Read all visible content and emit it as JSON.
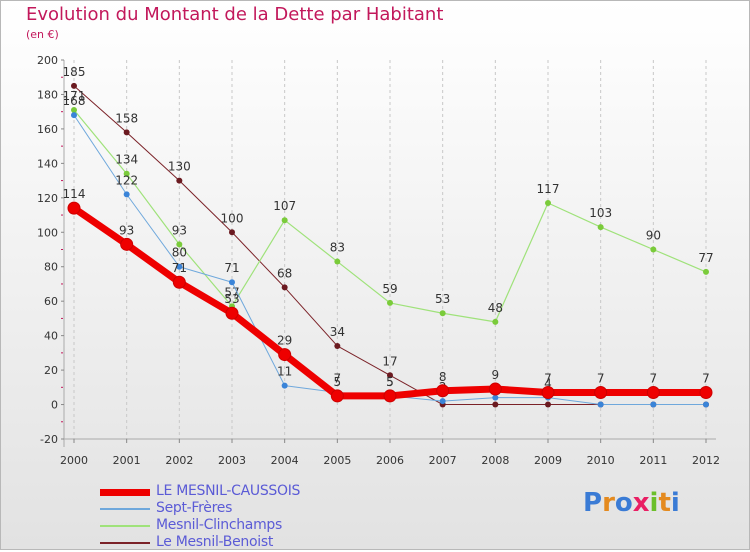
{
  "header": {
    "title": "Evolution du Montant de la Dette par Habitant",
    "subtitle": "(en €)"
  },
  "brand": {
    "text": "Proxiti",
    "colors": [
      "#3a7bd5",
      "#e48a1f",
      "#3a7bd5",
      "#e91e63",
      "#6bbf2a",
      "#e48a1f",
      "#3a7bd5"
    ]
  },
  "chart_data": {
    "type": "line",
    "title": "Evolution du Montant de la Dette par Habitant",
    "ylabel": "(en €)",
    "xlabel": "",
    "ylim": [
      -20,
      200
    ],
    "yticks": [
      -20,
      0,
      20,
      40,
      60,
      80,
      100,
      120,
      140,
      160,
      180,
      200
    ],
    "grid": "vertical dashed at each year",
    "legend_position": "bottom-left",
    "categories": [
      "2000",
      "2001",
      "2002",
      "2003",
      "2004",
      "2005",
      "2006",
      "2007",
      "2008",
      "2009",
      "2010",
      "2011",
      "2012"
    ],
    "series": [
      {
        "name": "Le Mesnil-Benoist",
        "color": "#7b2228",
        "marker": "#6b1a20",
        "width": 1,
        "values": [
          185,
          158,
          130,
          100,
          68,
          34,
          17,
          0,
          0,
          0,
          0,
          0,
          0
        ],
        "labels": [
          "185",
          "158",
          "130",
          "100",
          "68",
          "34",
          "17",
          "",
          "",
          "",
          "",
          "",
          ""
        ]
      },
      {
        "name": "Mesnil-Clinchamps",
        "color": "#9fe27a",
        "marker": "#7acb3a",
        "width": 1.2,
        "values": [
          171,
          134,
          93,
          57,
          107,
          83,
          59,
          53,
          48,
          117,
          103,
          90,
          77
        ],
        "labels": [
          "171",
          "134",
          "93",
          "57",
          "107",
          "83",
          "59",
          "53",
          "48",
          "117",
          "103",
          "90",
          "77"
        ]
      },
      {
        "name": "Sept-Frères",
        "color": "#6fa8dc",
        "marker": "#3a84d8",
        "width": 1,
        "values": [
          168,
          122,
          80,
          71,
          11,
          7,
          5,
          2,
          4,
          4,
          0,
          0,
          0
        ],
        "labels": [
          "168",
          "122",
          "80",
          "71",
          "11",
          "7",
          "5",
          "2",
          "",
          "4",
          "",
          "",
          ""
        ]
      },
      {
        "name": "LE MESNIL-CAUSSOIS",
        "color": "#ee0000",
        "marker": "#ee0000",
        "width": 7,
        "values": [
          114,
          93,
          71,
          53,
          29,
          5,
          5,
          8,
          9,
          7,
          7,
          7,
          7
        ],
        "labels": [
          "114",
          "93",
          "71",
          "53",
          "29",
          "5",
          "5",
          "8",
          "9",
          "7",
          "7",
          "7",
          "7"
        ]
      }
    ],
    "legend_order": [
      "LE MESNIL-CAUSSOIS",
      "Sept-Frères",
      "Mesnil-Clinchamps",
      "Le Mesnil-Benoist"
    ]
  }
}
